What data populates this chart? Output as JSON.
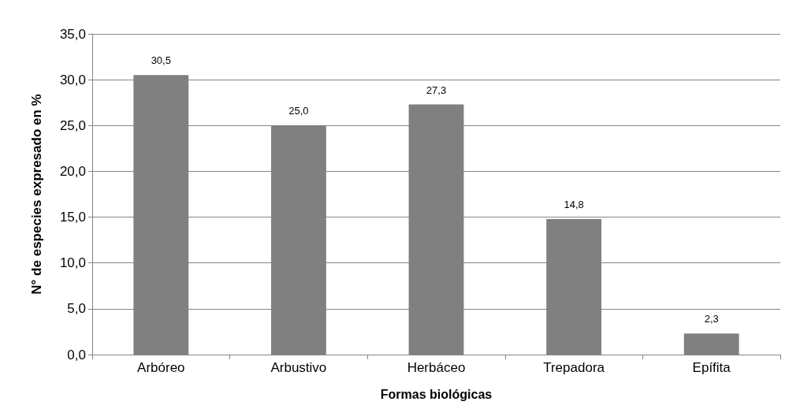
{
  "chart_data": {
    "type": "bar",
    "xlabel": "Formas biológicas",
    "ylabel": "N° de especies expresado en %",
    "categories": [
      "Arbóreo",
      "Arbustivo",
      "Herbáceo",
      "Trepadora",
      "Epífita"
    ],
    "values": [
      30.5,
      25.0,
      27.3,
      14.8,
      2.3
    ],
    "value_labels": [
      "30,5",
      "25,0",
      "27,3",
      "14,8",
      "2,3"
    ],
    "color": "#808080",
    "ylim": [
      0,
      35
    ],
    "yticks": [
      {
        "value": 0,
        "label": "0,0"
      },
      {
        "value": 5,
        "label": "5,0"
      },
      {
        "value": 10,
        "label": "10,0"
      },
      {
        "value": 15,
        "label": "15,0"
      },
      {
        "value": 20,
        "label": "20,0"
      },
      {
        "value": 25,
        "label": "25,0"
      },
      {
        "value": 30,
        "label": "30,0"
      },
      {
        "value": 35,
        "label": "35,0"
      }
    ],
    "grid": "y"
  }
}
